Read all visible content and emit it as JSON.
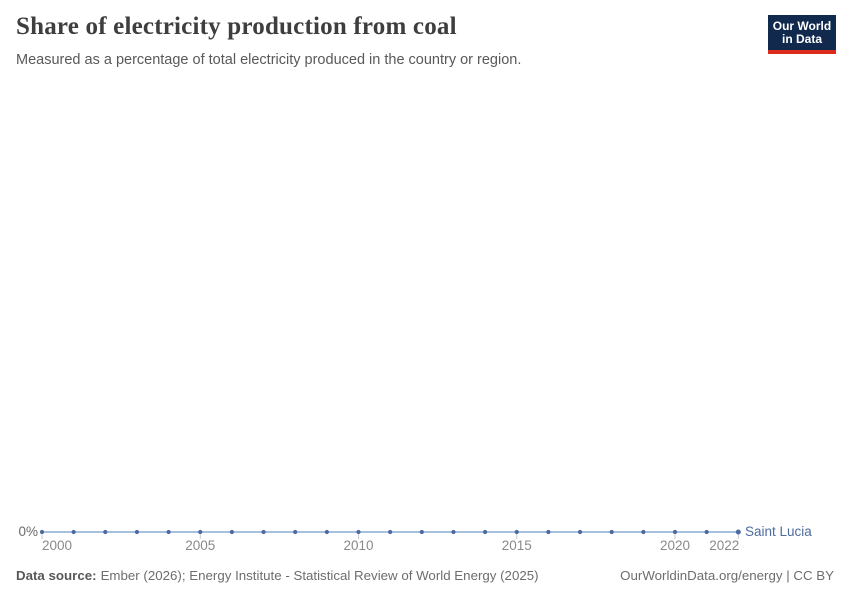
{
  "header": {
    "title": "Share of electricity production from coal",
    "subtitle": "Measured as a percentage of total electricity produced in the country or region."
  },
  "logo": {
    "line1": "Our World",
    "line2": "in Data",
    "bg_color": "#12294e",
    "stripe_color": "#dc2b1e"
  },
  "chart_data": {
    "type": "line",
    "title": "Share of electricity production from coal",
    "unit": "%",
    "grid": false,
    "legend_position": "end-of-line",
    "series": [
      {
        "name": "Saint Lucia",
        "x": [
          2000,
          2001,
          2002,
          2003,
          2004,
          2005,
          2006,
          2007,
          2008,
          2009,
          2010,
          2011,
          2012,
          2013,
          2014,
          2015,
          2016,
          2017,
          2018,
          2019,
          2020,
          2021,
          2022
        ],
        "values": [
          0,
          0,
          0,
          0,
          0,
          0,
          0,
          0,
          0,
          0,
          0,
          0,
          0,
          0,
          0,
          0,
          0,
          0,
          0,
          0,
          0,
          0,
          0
        ]
      }
    ],
    "xlim": [
      2000,
      2022
    ],
    "ylim": [
      0,
      null
    ],
    "x_ticks": [
      {
        "year": 2000,
        "label": "2000"
      },
      {
        "year": 2005,
        "label": "2005"
      },
      {
        "year": 2010,
        "label": "2010"
      },
      {
        "year": 2015,
        "label": "2015"
      },
      {
        "year": 2020,
        "label": "2020"
      },
      {
        "year": 2022,
        "label": "2022"
      }
    ],
    "y_tick_labels": [
      "0%"
    ],
    "line_color": "#a7c0dd",
    "marker_color": "#4d6b9e",
    "entity_label_color": "#4d6b9e",
    "tick_color": "#bfc9d4"
  },
  "footer": {
    "source_label": "Data source:",
    "source_text": "Ember (2026); Energy Institute - Statistical Review of World Energy (2025)",
    "attribution": "OurWorldinData.org/energy | CC BY"
  }
}
